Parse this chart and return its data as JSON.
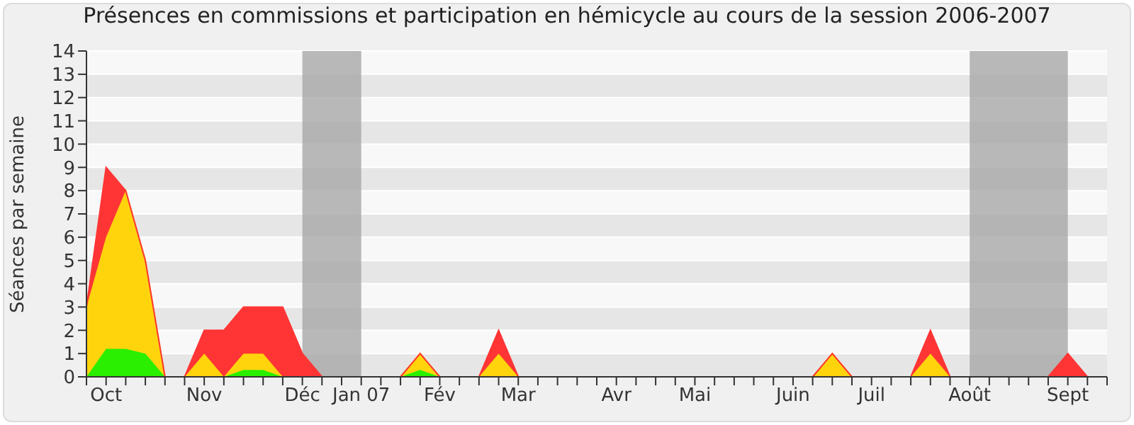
{
  "chart_data": {
    "type": "area",
    "stacked": true,
    "title": "Présences en commissions et participation en hémicycle au cours de la session 2006-2007",
    "ylabel": "Séances par semaine",
    "categories": [
      null,
      "Oct",
      null,
      null,
      null,
      null,
      "Nov",
      null,
      null,
      null,
      null,
      "Déc",
      null,
      null,
      "Jan 07",
      null,
      null,
      null,
      "Fév",
      null,
      null,
      null,
      "Mar",
      null,
      null,
      null,
      null,
      "Avr",
      null,
      null,
      null,
      "Mai",
      null,
      null,
      null,
      null,
      "Juin",
      null,
      null,
      null,
      "Juil",
      null,
      null,
      null,
      null,
      "Août",
      null,
      null,
      null,
      null,
      "Sept",
      null,
      null
    ],
    "series": [
      {
        "color": "#2bef00",
        "values": [
          0,
          1.2,
          1.2,
          1.0,
          0,
          0,
          0,
          0,
          0.3,
          0.3,
          0,
          0,
          0,
          0,
          0,
          0,
          0,
          0.3,
          0,
          0,
          0,
          0,
          0,
          0,
          0,
          0,
          0,
          0,
          0,
          0,
          0,
          0,
          0,
          0,
          0,
          0,
          0,
          0,
          0,
          0,
          0,
          0,
          0,
          0,
          0,
          0,
          0,
          0,
          0,
          0,
          0,
          0,
          0
        ]
      },
      {
        "color": "#ffd40d",
        "values": [
          3,
          4.8,
          6.8,
          4,
          0,
          0,
          1,
          0,
          0.7,
          0.7,
          0,
          0,
          0,
          0,
          0,
          0,
          0,
          0.7,
          0,
          0,
          0,
          1,
          0,
          0,
          0,
          0,
          0,
          0,
          0,
          0,
          0,
          0,
          0,
          0,
          0,
          0,
          0,
          0,
          1,
          0,
          0,
          0,
          0,
          1,
          0,
          0,
          0,
          0,
          0,
          0,
          0,
          0,
          0
        ]
      },
      {
        "color": "#ff3535",
        "values": [
          0,
          3,
          0,
          0,
          0,
          0,
          1,
          2,
          2,
          2,
          3,
          1,
          0,
          0,
          0,
          0,
          0,
          0,
          0,
          0,
          0,
          1,
          0,
          0,
          0,
          0,
          0,
          0,
          0,
          0,
          0,
          0,
          0,
          0,
          0,
          0,
          0,
          0,
          0,
          0,
          0,
          0,
          0,
          1,
          0,
          0,
          0,
          0,
          0,
          0,
          1,
          0,
          0
        ]
      }
    ],
    "ylim": [
      0,
      14
    ],
    "yticks": [
      0,
      1,
      2,
      3,
      4,
      5,
      6,
      7,
      8,
      9,
      10,
      11,
      12,
      13,
      14
    ],
    "grid": "y",
    "bands": [
      {
        "axis": "x",
        "from": "Déc",
        "to": "Jan 07",
        "color": "#a8a8a8"
      },
      {
        "axis": "x",
        "from": "Août",
        "to": "Sept",
        "color": "#a8a8a8"
      }
    ]
  }
}
